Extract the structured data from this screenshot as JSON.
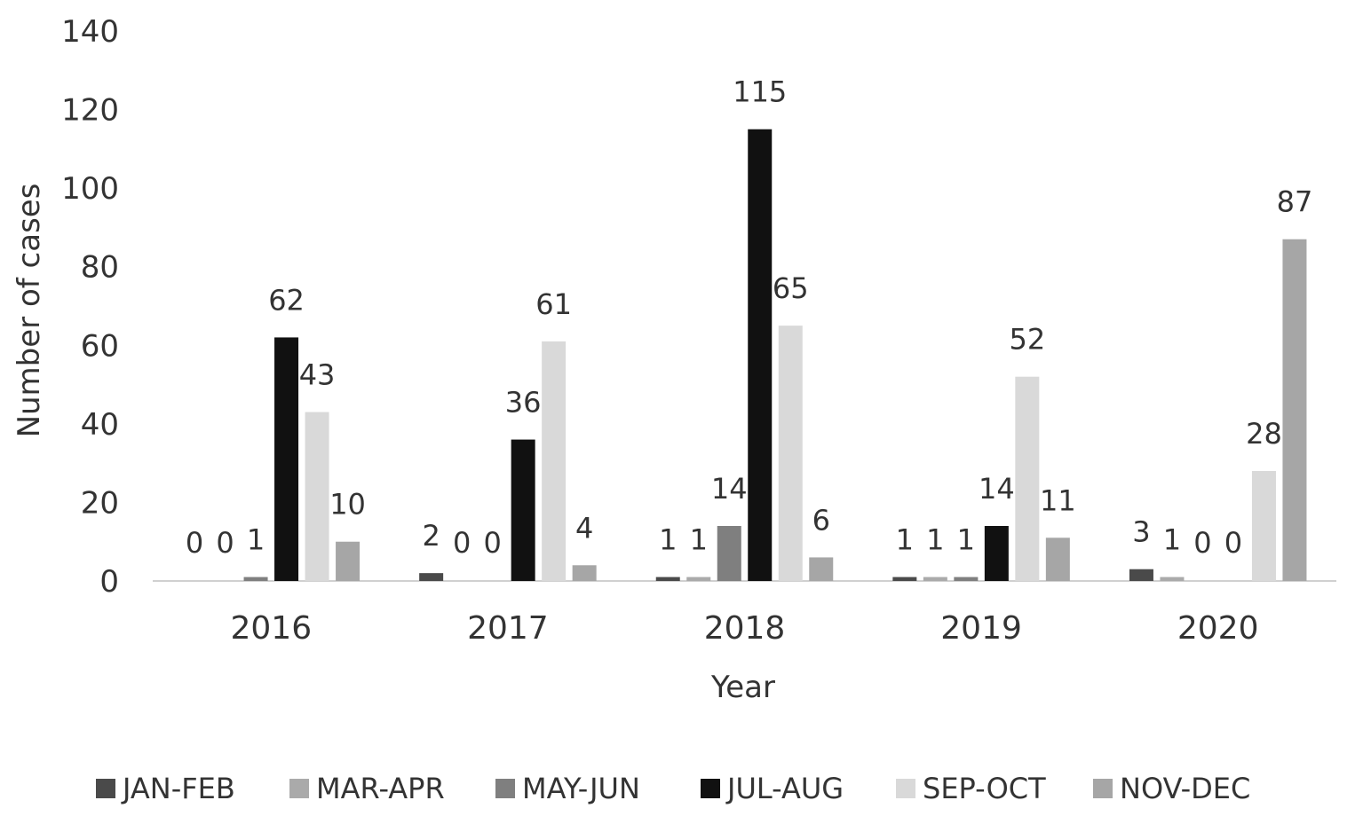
{
  "chart_data": {
    "type": "bar",
    "title": "",
    "xlabel": "Year",
    "ylabel": "Number of cases",
    "ylim": [
      0,
      140
    ],
    "yticks": [
      "0",
      "20",
      "40",
      "60",
      "80",
      "100",
      "120",
      "140"
    ],
    "categories": [
      "2016",
      "2017",
      "2018",
      "2019",
      "2020"
    ],
    "grid": false,
    "legend_position": "bottom",
    "series": [
      {
        "name": "JAN-FEB",
        "color": "#4a4a4a",
        "values": [
          0,
          2,
          1,
          1,
          3
        ]
      },
      {
        "name": "MAR-APR",
        "color": "#aaaaaa",
        "values": [
          0,
          0,
          1,
          1,
          1
        ]
      },
      {
        "name": "MAY-JUN",
        "color": "#7f7f7f",
        "values": [
          1,
          0,
          14,
          1,
          0
        ]
      },
      {
        "name": "JUL-AUG",
        "color": "#111111",
        "values": [
          62,
          36,
          115,
          14,
          0
        ]
      },
      {
        "name": "SEP-OCT",
        "color": "#d9d9d9",
        "values": [
          43,
          61,
          65,
          52,
          28
        ]
      },
      {
        "name": "NOV-DEC",
        "color": "#a6a6a6",
        "values": [
          10,
          4,
          6,
          11,
          87
        ]
      }
    ]
  }
}
